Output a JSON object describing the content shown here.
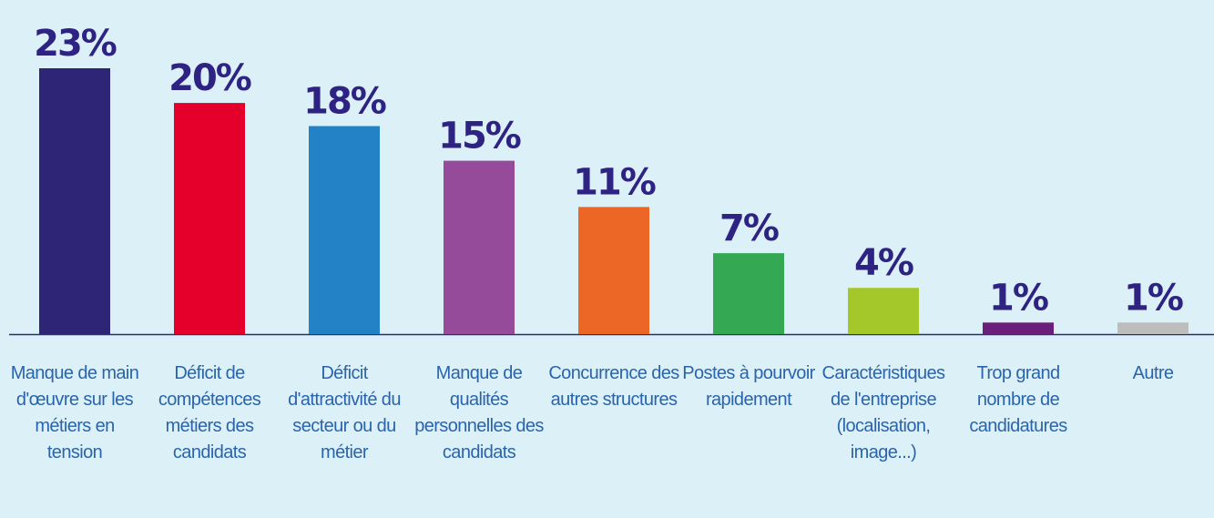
{
  "chart_data": {
    "type": "bar",
    "categories": [
      "Manque de main d'œuvre sur les métiers en tension",
      "Déficit de compétences métiers des candidats",
      "Déficit d'attractivité du secteur ou du métier",
      "Manque de qualités personnelles des candidats",
      "Concurrence des autres structures",
      "Postes à pourvoir rapidement",
      "Caractéristiques de l'entreprise (localisation, image...)",
      "Trop grand nombre de candidatures",
      "Autre"
    ],
    "values": [
      23,
      20,
      18,
      15,
      11,
      7,
      4,
      1,
      1
    ],
    "value_labels": [
      "23%",
      "20%",
      "18%",
      "15%",
      "11%",
      "7%",
      "4%",
      "1%",
      "1%"
    ],
    "colors": [
      "#2f2577",
      "#e4002b",
      "#2381c6",
      "#954b99",
      "#ec6726",
      "#35a853",
      "#a4c72a",
      "#6a1f7a",
      "#bdbdbd"
    ],
    "ylim": [
      0,
      23
    ]
  }
}
